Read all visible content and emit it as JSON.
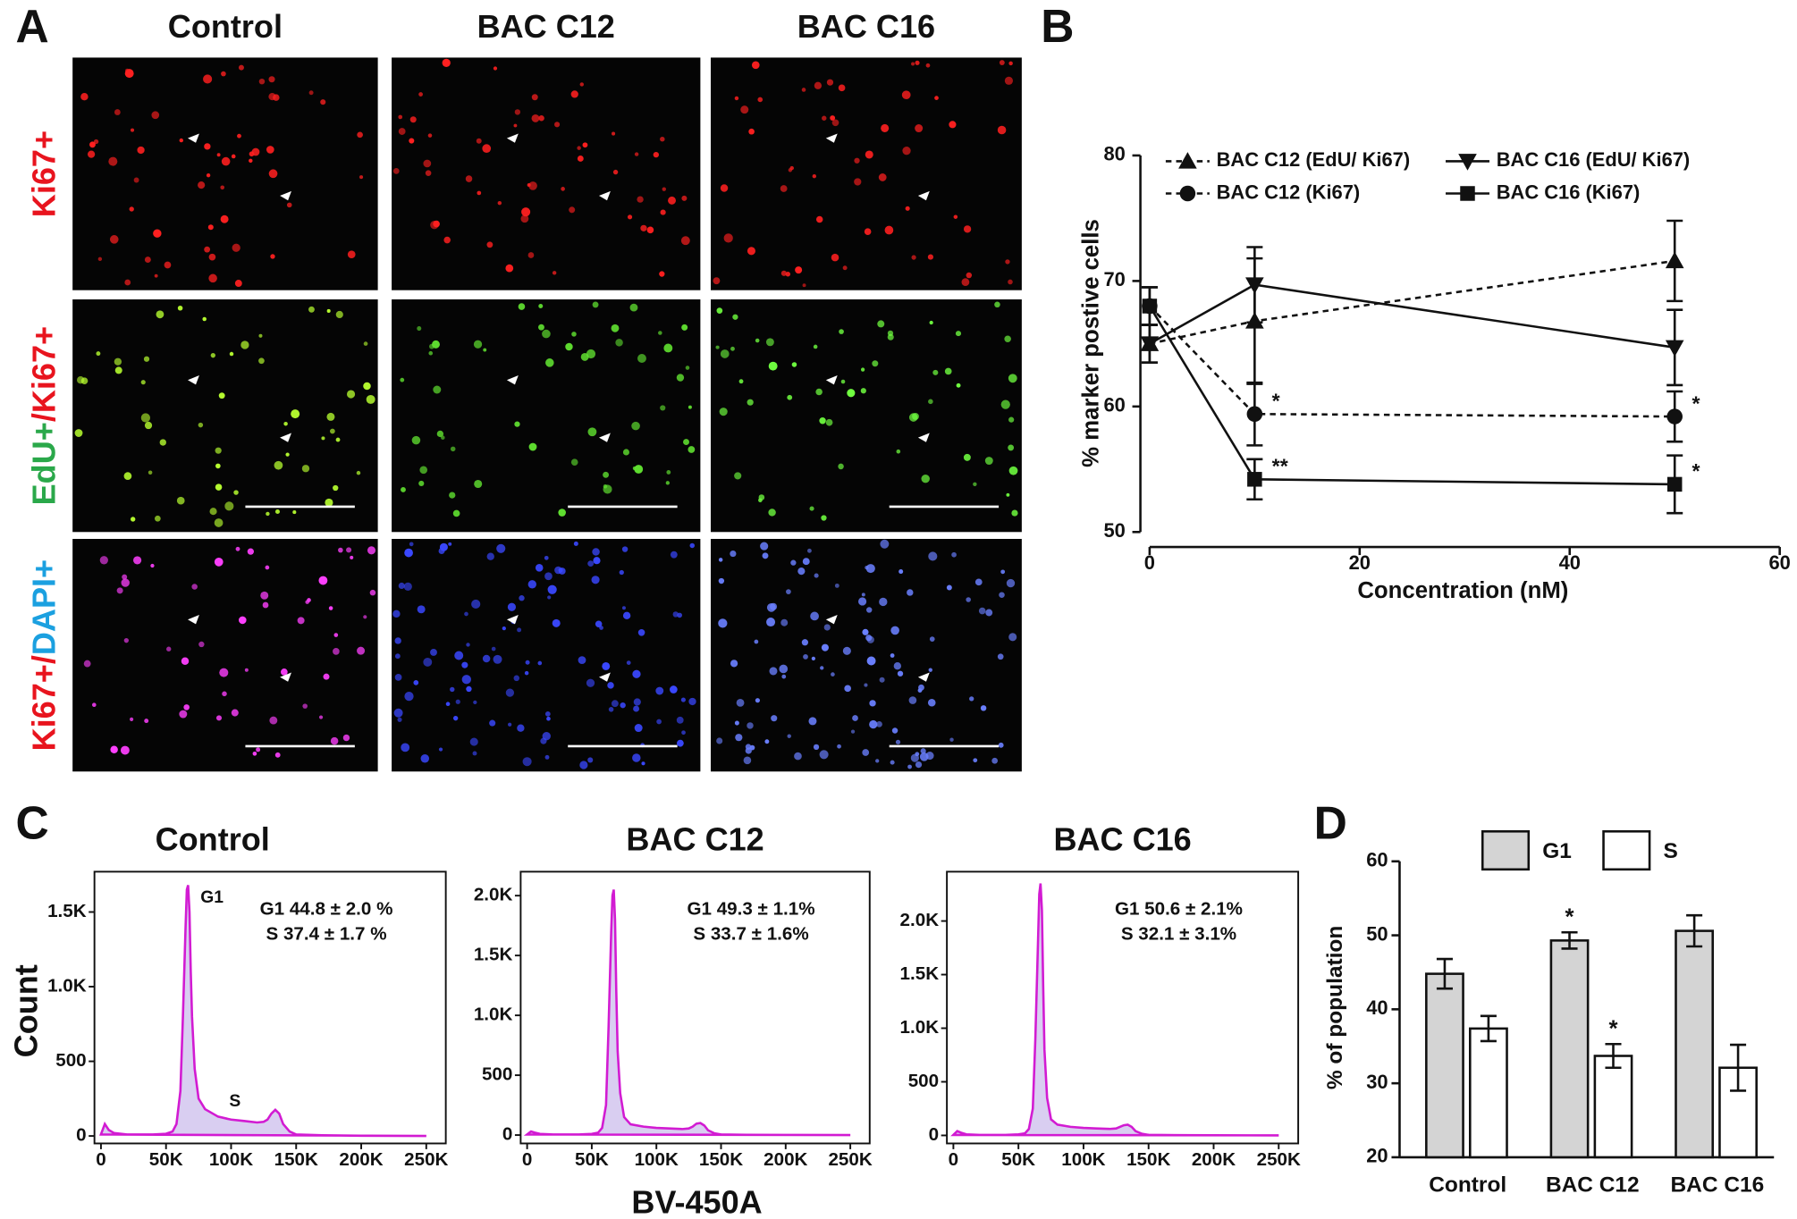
{
  "panel_labels": [
    "A",
    "B",
    "C",
    "D"
  ],
  "panel_a": {
    "columns": [
      "Control",
      "BAC C12",
      "BAC C16"
    ],
    "rows": [
      {
        "parts": [
          "Ki67+"
        ],
        "colors": [
          "#e8141e"
        ]
      },
      {
        "parts": [
          "EdU+",
          "/Ki67+"
        ],
        "colors": [
          "#2aa84a",
          "#e8141e"
        ]
      },
      {
        "parts": [
          "Ki67+/",
          "DAPI+"
        ],
        "colors": [
          "#e8141e",
          "#1ba0e0"
        ]
      }
    ]
  },
  "panel_c": {
    "ylabel": "Count",
    "xlabel": "BV-450A"
  },
  "chart_data": [
    {
      "type": "line",
      "xlabel": "Concentration (nM)",
      "ylabel": "% marker postive cells",
      "x": [
        0,
        10,
        50
      ],
      "xlim": [
        0,
        60
      ],
      "xticks": [
        0,
        20,
        40,
        60
      ],
      "ylim": [
        50,
        80
      ],
      "yticks": [
        50,
        60,
        70,
        80
      ],
      "series": [
        {
          "name": "BAC C12 (EdU/ Ki67)",
          "marker": "triangle-up",
          "linestyle": "dashed",
          "color": "#111111",
          "values": [
            65,
            66.8,
            71.6
          ],
          "errors": [
            1.5,
            5,
            3.2
          ],
          "point_labels": [
            null,
            null,
            null
          ]
        },
        {
          "name": "BAC C12 (Ki67)",
          "marker": "circle",
          "linestyle": "dashed",
          "color": "#111111",
          "values": [
            68,
            59.4,
            59.2
          ],
          "errors": [
            1.5,
            2.5,
            2
          ],
          "point_labels": [
            null,
            "*",
            "*"
          ]
        },
        {
          "name": "BAC C16 (EdU/ Ki67)",
          "marker": "triangle-down",
          "linestyle": "solid",
          "color": "#111111",
          "values": [
            65,
            69.7,
            64.7
          ],
          "errors": [
            1.5,
            3,
            3
          ],
          "point_labels": [
            null,
            null,
            null
          ]
        },
        {
          "name": "BAC C16 (Ki67)",
          "marker": "square",
          "linestyle": "solid",
          "color": "#111111",
          "values": [
            68,
            54.2,
            53.8
          ],
          "errors": [
            1.5,
            1.6,
            2.3
          ],
          "point_labels": [
            null,
            "**",
            "*"
          ]
        }
      ]
    },
    {
      "type": "histogram-curve",
      "title": "Control",
      "stats": [
        "G1 44.8 ± 2.0 %",
        "S 37.4 ± 1.7 %"
      ],
      "annotations": [
        "G1",
        "S"
      ],
      "xlim": [
        -5000,
        265000
      ],
      "ylim": [
        -50,
        1770
      ],
      "xticks": [
        0,
        {
          "value": 50000,
          "label": "50K"
        },
        {
          "value": 100000,
          "label": "100K"
        },
        {
          "value": 150000,
          "label": "150K"
        },
        {
          "value": 200000,
          "label": "200K"
        },
        {
          "value": 250000,
          "label": "250K"
        }
      ],
      "yticks": [
        0,
        500,
        {
          "value": 1000,
          "label": "1.0K"
        },
        {
          "value": 1500,
          "label": "1.5K"
        }
      ],
      "x": [
        0,
        3000,
        6000,
        10000,
        20000,
        30000,
        40000,
        50000,
        55000,
        58000,
        61000,
        63000,
        65000,
        66000,
        67000,
        68000,
        69000,
        70000,
        72000,
        75000,
        80000,
        90000,
        100000,
        110000,
        120000,
        125000,
        128000,
        131000,
        134000,
        137000,
        140000,
        145000,
        150000,
        170000,
        200000,
        250000
      ],
      "values": [
        10,
        80,
        40,
        20,
        10,
        10,
        10,
        15,
        30,
        80,
        300,
        800,
        1400,
        1650,
        1680,
        1500,
        1100,
        800,
        450,
        250,
        180,
        130,
        110,
        100,
        90,
        95,
        110,
        150,
        175,
        150,
        80,
        30,
        10,
        5,
        2,
        0
      ]
    },
    {
      "type": "histogram-curve",
      "title": "BAC C12",
      "stats": [
        "G1 49.3 ± 1.1%",
        "S 33.7 ± 1.6%"
      ],
      "annotations": [],
      "xlim": [
        -5000,
        265000
      ],
      "ylim": [
        -70,
        2200
      ],
      "xticks": [
        0,
        {
          "value": 50000,
          "label": "50K"
        },
        {
          "value": 100000,
          "label": "100K"
        },
        {
          "value": 150000,
          "label": "150K"
        },
        {
          "value": 200000,
          "label": "200K"
        },
        {
          "value": 250000,
          "label": "250K"
        }
      ],
      "yticks": [
        0,
        500,
        {
          "value": 1000,
          "label": "1.0K"
        },
        {
          "value": 1500,
          "label": "1.5K"
        },
        {
          "value": 2000,
          "label": "2.0K"
        }
      ],
      "x": [
        0,
        3000,
        6000,
        10000,
        20000,
        30000,
        40000,
        50000,
        55000,
        58000,
        61000,
        63000,
        65000,
        66000,
        67000,
        68000,
        69000,
        70000,
        72000,
        75000,
        80000,
        90000,
        100000,
        110000,
        120000,
        125000,
        128000,
        131000,
        134000,
        137000,
        140000,
        145000,
        150000,
        170000,
        200000,
        250000
      ],
      "values": [
        5,
        30,
        20,
        10,
        5,
        5,
        5,
        10,
        20,
        60,
        250,
        900,
        1700,
        2000,
        2050,
        1800,
        1200,
        700,
        350,
        150,
        90,
        70,
        60,
        55,
        50,
        55,
        70,
        95,
        100,
        80,
        40,
        15,
        5,
        2,
        1,
        0
      ]
    },
    {
      "type": "histogram-curve",
      "title": "BAC C16",
      "stats": [
        "G1 50.6 ± 2.1%",
        "S 32.1 ± 3.1%"
      ],
      "annotations": [],
      "xlim": [
        -5000,
        265000
      ],
      "ylim": [
        -75,
        2460
      ],
      "xticks": [
        0,
        {
          "value": 50000,
          "label": "50K"
        },
        {
          "value": 100000,
          "label": "100K"
        },
        {
          "value": 150000,
          "label": "150K"
        },
        {
          "value": 200000,
          "label": "200K"
        },
        {
          "value": 250000,
          "label": "250K"
        }
      ],
      "yticks": [
        0,
        500,
        {
          "value": 1000,
          "label": "1.0K"
        },
        {
          "value": 1500,
          "label": "1.5K"
        },
        {
          "value": 2000,
          "label": "2.0K"
        }
      ],
      "x": [
        0,
        3000,
        6000,
        10000,
        20000,
        30000,
        40000,
        50000,
        55000,
        58000,
        61000,
        63000,
        65000,
        66000,
        67000,
        68000,
        69000,
        70000,
        72000,
        75000,
        80000,
        90000,
        100000,
        110000,
        120000,
        125000,
        128000,
        131000,
        134000,
        137000,
        140000,
        145000,
        150000,
        170000,
        200000,
        250000
      ],
      "values": [
        5,
        40,
        25,
        10,
        5,
        5,
        5,
        10,
        20,
        60,
        250,
        900,
        1800,
        2250,
        2350,
        2100,
        1400,
        800,
        350,
        150,
        100,
        80,
        70,
        65,
        60,
        65,
        80,
        95,
        100,
        80,
        40,
        15,
        5,
        2,
        1,
        0
      ]
    },
    {
      "type": "bar",
      "ylabel": "% of population",
      "categories": [
        "Control",
        "BAC C12",
        "BAC C16"
      ],
      "ylim": [
        20,
        60
      ],
      "yticks": [
        20,
        30,
        40,
        50,
        60
      ],
      "series": [
        {
          "name": "G1",
          "color": "#d4d4d4",
          "values": [
            44.8,
            49.3,
            50.6
          ],
          "errors": [
            2.0,
            1.1,
            2.1
          ],
          "point_labels": [
            null,
            "*",
            null
          ]
        },
        {
          "name": "S",
          "color": "#ffffff",
          "values": [
            37.4,
            33.7,
            32.1
          ],
          "errors": [
            1.7,
            1.6,
            3.1
          ],
          "point_labels": [
            null,
            "*",
            null
          ]
        }
      ]
    }
  ]
}
